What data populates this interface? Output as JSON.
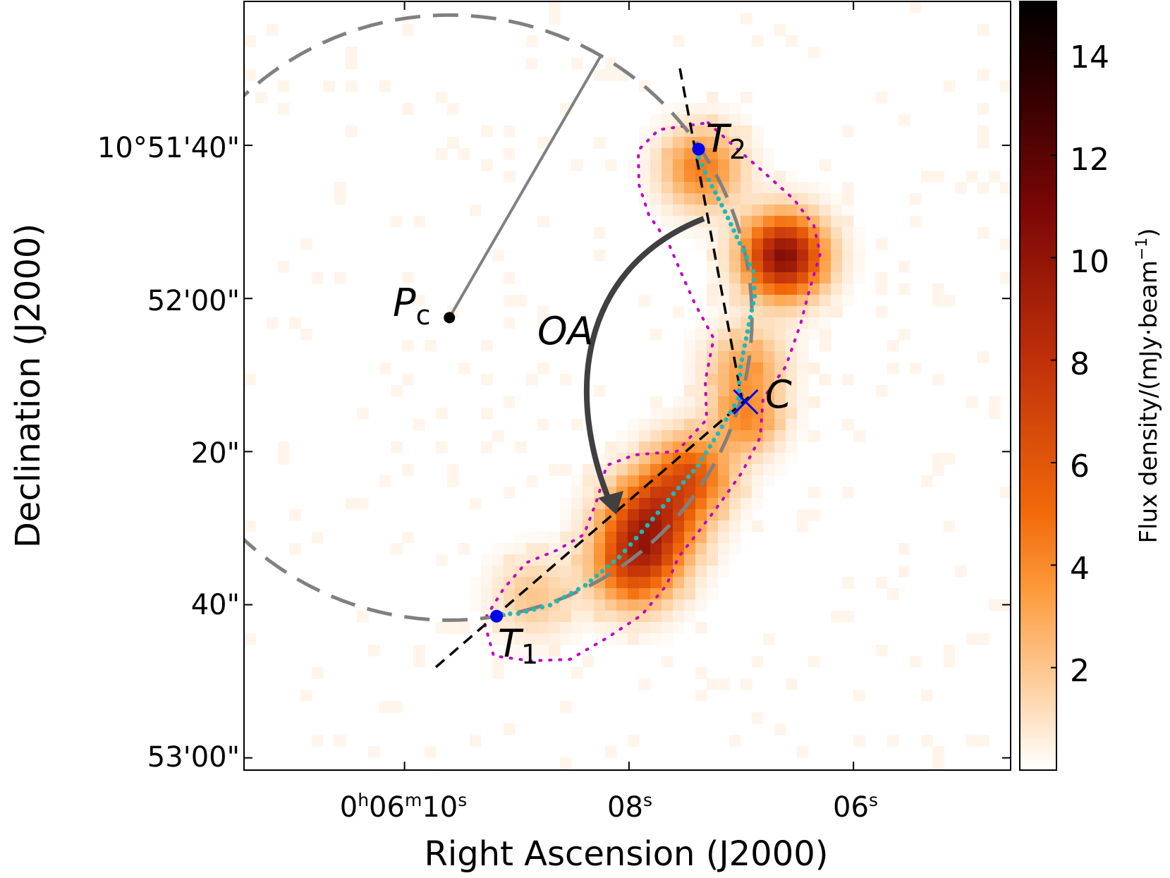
{
  "chart_data": {
    "type": "heatmap",
    "title": "",
    "xlabel": "Right Ascension (J2000)",
    "ylabel": "Declination (J2000)",
    "x_ticks": [
      {
        "ra_s": 10,
        "label_main": "0",
        "sup_h": "h",
        "label_mid": "06",
        "sup_m": "m",
        "label_sec": "10",
        "sup_s": "s"
      },
      {
        "ra_s": 8,
        "label_main": "08",
        "sup_s": "s"
      },
      {
        "ra_s": 6,
        "label_main": "06",
        "sup_s": "s"
      }
    ],
    "y_ticks": [
      {
        "dec_arcsec": 100,
        "label": "10°51'40\""
      },
      {
        "dec_arcsec": 120,
        "label": "52'00\""
      },
      {
        "dec_arcsec": 140,
        "label": "20\""
      },
      {
        "dec_arcsec": 160,
        "label": "40\""
      },
      {
        "dec_arcsec": 180,
        "label": "53'00\""
      }
    ],
    "x_range_ra_s": [
      11.43,
      4.6
    ],
    "y_range_dec_arcsec": [
      81.2,
      181.6
    ],
    "colorbar": {
      "label_main": "Flux density/(mJy·beam",
      "label_sup": "−1",
      "label_close": ")",
      "range": [
        0,
        15
      ],
      "ticks": [
        "2",
        "4",
        "6",
        "8",
        "10",
        "12",
        "14"
      ],
      "tick_values": [
        2,
        4,
        6,
        8,
        10,
        12,
        14
      ],
      "colors": [
        "#ffffff",
        "#fdd4a8",
        "#fd9a3c",
        "#f26a0a",
        "#c0300a",
        "#7a0606",
        "#2a0000",
        "#000000"
      ]
    },
    "emission_blobs": [
      {
        "ra_s": 7.35,
        "dec_arcsec": 103,
        "peak": 4.5,
        "sigma": 3.5
      },
      {
        "ra_s": 6.62,
        "dec_arcsec": 114.5,
        "peak": 10.5,
        "sigma": 3.6
      },
      {
        "ra_s": 6.95,
        "dec_arcsec": 129,
        "peak": 3.2,
        "sigma": 3.5
      },
      {
        "ra_s": 6.95,
        "dec_arcsec": 136,
        "peak": 3.6,
        "sigma": 3.0
      },
      {
        "ra_s": 7.45,
        "dec_arcsec": 143,
        "peak": 5.5,
        "sigma": 3.6
      },
      {
        "ra_s": 7.8,
        "dec_arcsec": 149,
        "peak": 7.5,
        "sigma": 4.0
      },
      {
        "ra_s": 7.95,
        "dec_arcsec": 155,
        "peak": 6.2,
        "sigma": 3.8
      },
      {
        "ra_s": 8.85,
        "dec_arcsec": 159,
        "peak": 2.0,
        "sigma": 3.5
      }
    ],
    "points": [
      {
        "name": "T1",
        "ra_s": 9.18,
        "dec_arcsec": 161.5
      },
      {
        "name": "T2",
        "ra_s": 7.38,
        "dec_arcsec": 100.5
      },
      {
        "name": "C",
        "ra_s": 6.96,
        "dec_arcsec": 133.5
      },
      {
        "name": "Pc",
        "ra_s": 9.6,
        "dec_arcsec": 122.5
      }
    ],
    "colors": {
      "dashed_circle": "#808080",
      "tangent_lines": "#000000",
      "cyan_ridge": "#20b8b8",
      "magenta_contour": "#c000c0",
      "arrow": "#404040",
      "marker_blue": "#0000ee"
    }
  },
  "annotations": {
    "t1": "T",
    "t1_sub": "1",
    "t2": "T",
    "t2_sub": "2",
    "c": "C",
    "pc": "P",
    "pc_sub": "c",
    "oa": "OA"
  }
}
